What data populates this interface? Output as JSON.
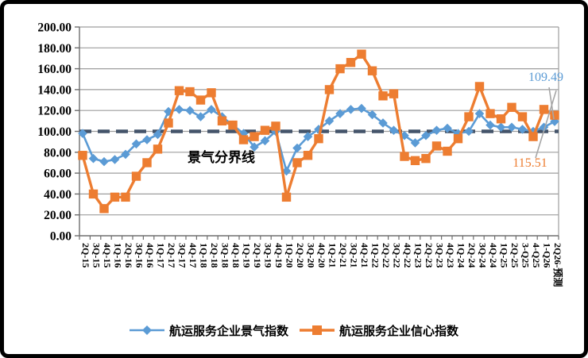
{
  "chart_data": {
    "type": "line",
    "title": "",
    "categories": [
      "2Q-15",
      "3Q-15",
      "4Q-15",
      "1Q-16",
      "2Q-16",
      "3Q-16",
      "4Q-16",
      "1Q-17",
      "2Q-17",
      "3Q-17",
      "4Q-17",
      "1Q-18",
      "2Q-18",
      "3Q-18",
      "4Q-18",
      "1Q-19",
      "2Q-19",
      "3Q-19",
      "4Q-19",
      "1Q-20",
      "2Q-20",
      "3Q-20",
      "4Q-20",
      "1Q-21",
      "2Q-21",
      "3Q-21",
      "4Q-21",
      "1Q-22",
      "2Q-22",
      "3Q-22",
      "4Q-22",
      "1Q-23",
      "2Q-23",
      "3Q-23",
      "4Q-23",
      "1Q-24",
      "2Q-24",
      "3Q-24",
      "4Q-24",
      "1Q-25",
      "2Q-25",
      "3-Q25",
      "4-Q25",
      "1-Q26",
      "2Q26-预测"
    ],
    "series": [
      {
        "name": "航运服务企业景气指数",
        "marker": "diamond",
        "color": "#5B9BD5",
        "values": [
          98,
          74,
          71,
          73,
          78,
          88,
          92,
          97,
          119,
          121,
          120,
          114,
          121,
          114,
          106,
          98,
          85,
          91,
          100,
          62,
          84,
          95,
          102,
          110,
          117,
          121,
          122,
          116,
          108,
          101,
          96,
          89,
          96,
          101,
          103,
          98,
          100,
          117,
          106,
          104,
          104,
          102,
          100,
          104,
          109.49
        ]
      },
      {
        "name": "航运服务企业信心指数",
        "marker": "square",
        "color": "#ED7D31",
        "values": [
          77,
          40,
          26,
          37,
          37,
          57,
          70,
          83,
          108,
          139,
          138,
          130,
          137,
          110,
          106,
          92,
          95,
          101,
          105,
          37,
          70,
          77,
          93,
          140,
          160,
          166,
          174,
          158,
          134,
          136,
          76,
          72,
          74,
          86,
          81,
          93,
          114,
          143,
          117,
          112,
          123,
          114,
          95,
          121,
          115.51
        ]
      }
    ],
    "ylim": [
      0,
      200
    ],
    "y_tick_step": 20,
    "y_tick_labels": [
      "0.00",
      "20.00",
      "40.00",
      "60.00",
      "80.00",
      "100.00",
      "120.00",
      "140.00",
      "160.00",
      "180.00",
      "200.00"
    ],
    "grid": "horizontal",
    "grid_color": "#9E9E9E",
    "legend_position": "bottom",
    "reference_line": {
      "value": 100,
      "label": "景气分界线",
      "color": "#44546A",
      "style": "dashed"
    },
    "annotations": [
      {
        "text": "109.49",
        "color": "#5B9BD5",
        "series": "航运服务企业景气指数"
      },
      {
        "text": "115.51",
        "color": "#ED7D31",
        "series": "航运服务企业信心指数"
      }
    ]
  }
}
